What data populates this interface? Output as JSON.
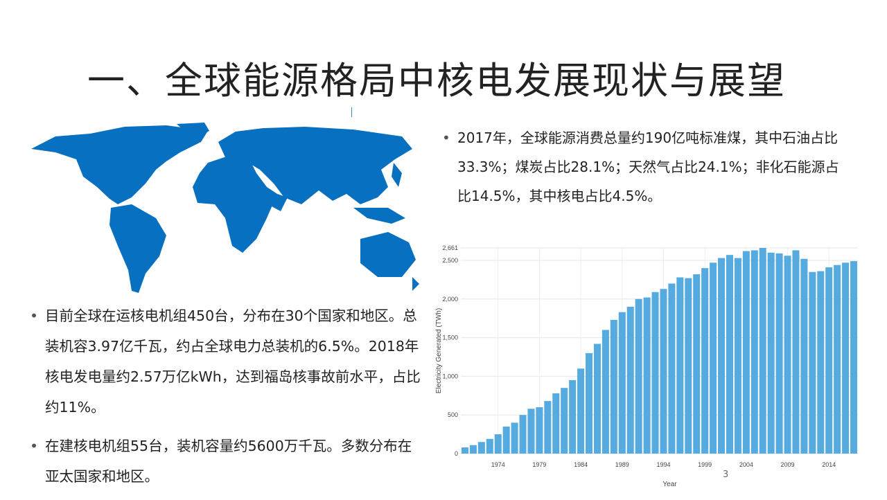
{
  "slide": {
    "title": "一、全球能源格局中核电发展现状与展望",
    "right_bullets": [
      "2017年，全球能源消费总量约190亿吨标准煤，其中石油占比33.3%；煤炭占比28.1%；天然气占比24.1%；非化石能源占比14.5%，其中核电占比4.5%。"
    ],
    "left_bullets": [
      "目前全球在运核电机组450台，分布在30个国家和地区。总装机容3.97亿千瓦，约占全球电力总装机的6.5%。2018年核电发电量约2.57万亿kWh，达到福岛核事故前水平，占比约11%。",
      "在建核电机组55台，装机容量约5600万千瓦。多数分布在亚太国家和地区。"
    ],
    "page_number": "3"
  },
  "chart_data": {
    "type": "bar",
    "x_label": "Year",
    "y_label": "Electricity Generated (TWh)",
    "color": "#55abe0",
    "x": [
      1970,
      1971,
      1972,
      1973,
      1974,
      1975,
      1976,
      1977,
      1978,
      1979,
      1980,
      1981,
      1982,
      1983,
      1984,
      1985,
      1986,
      1987,
      1988,
      1989,
      1990,
      1991,
      1992,
      1993,
      1994,
      1995,
      1996,
      1997,
      1998,
      1999,
      2000,
      2001,
      2002,
      2003,
      2004,
      2005,
      2006,
      2007,
      2008,
      2009,
      2010,
      2011,
      2012,
      2013,
      2014,
      2015,
      2016,
      2017
    ],
    "values": [
      80,
      110,
      150,
      190,
      250,
      350,
      400,
      500,
      580,
      600,
      680,
      780,
      850,
      950,
      1100,
      1300,
      1420,
      1600,
      1730,
      1830,
      1900,
      2000,
      2020,
      2090,
      2130,
      2200,
      2280,
      2270,
      2320,
      2400,
      2470,
      2530,
      2570,
      2530,
      2620,
      2630,
      2661,
      2600,
      2590,
      2560,
      2630,
      2520,
      2350,
      2360,
      2410,
      2440,
      2470,
      2490
    ],
    "xlim": [
      1969.5,
      2017.5
    ],
    "xticks": [
      1974,
      1979,
      1984,
      1989,
      1994,
      1999,
      2004,
      2009,
      2014
    ],
    "ylim": [
      0,
      2661
    ],
    "yticks": [
      {
        "value": 0,
        "label": "0"
      },
      {
        "value": 500,
        "label": "500"
      },
      {
        "value": 1000,
        "label": "1,000"
      },
      {
        "value": 1500,
        "label": "1,500"
      },
      {
        "value": 2000,
        "label": "2,000"
      },
      {
        "value": 2500,
        "label": "2,500"
      },
      {
        "value": 2661,
        "label": "2,661"
      }
    ],
    "grid": true
  }
}
